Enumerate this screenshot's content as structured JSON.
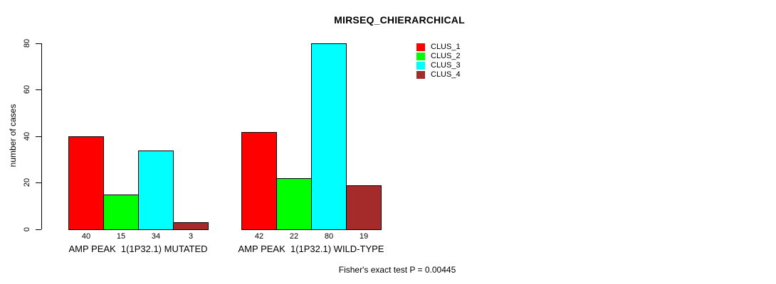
{
  "chart_data": {
    "type": "bar",
    "title": "MIRSEQ_CHIERARCHICAL",
    "ylabel": "number of cases",
    "xlabel": "",
    "ylim": [
      0,
      80
    ],
    "yticks": [
      "0",
      "20",
      "40",
      "60",
      "80"
    ],
    "grid": false,
    "legend_position": "top-right",
    "bar_border_color": "#000000",
    "categories": [
      "AMP PEAK  1(1P32.1) MUTATED",
      "AMP PEAK  1(1P32.1) WILD-TYPE"
    ],
    "series": [
      {
        "name": "CLUS_1",
        "color": "#FF0000",
        "values": [
          40,
          42
        ]
      },
      {
        "name": "CLUS_2",
        "color": "#00FF00",
        "values": [
          15,
          22
        ]
      },
      {
        "name": "CLUS_3",
        "color": "#00FFFF",
        "values": [
          34,
          80
        ]
      },
      {
        "name": "CLUS_4",
        "color": "#A52A2A",
        "values": [
          3,
          19
        ]
      }
    ],
    "show_value_labels": true,
    "annotation": "Fisher's exact test P = 0.00445"
  }
}
